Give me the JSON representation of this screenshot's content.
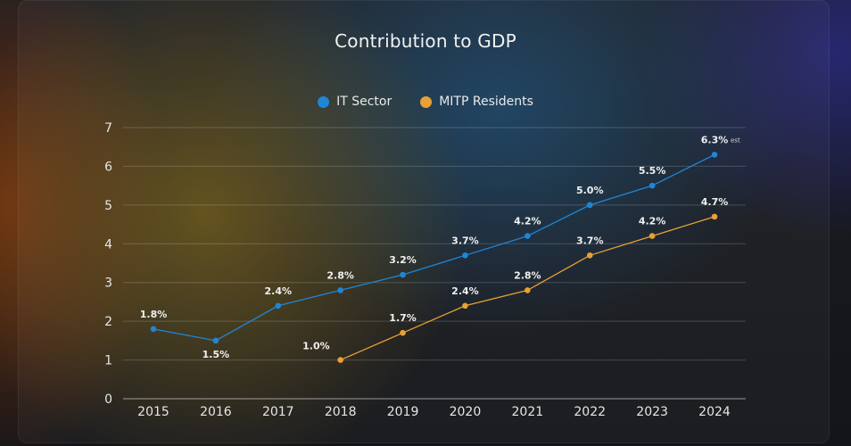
{
  "chart_data": {
    "type": "line",
    "title": "Contribution to GDP",
    "xlabel": "",
    "ylabel": "",
    "categories": [
      "2015",
      "2016",
      "2017",
      "2018",
      "2019",
      "2020",
      "2021",
      "2022",
      "2023",
      "2024"
    ],
    "ylim": [
      0,
      7
    ],
    "yticks": [
      0,
      1,
      2,
      3,
      4,
      5,
      6,
      7
    ],
    "grid": true,
    "legend_position": "top-center",
    "series": [
      {
        "name": "IT Sector",
        "color": "#1f86d6",
        "values": [
          1.8,
          1.5,
          2.4,
          2.8,
          3.2,
          3.7,
          4.2,
          5.0,
          5.5,
          6.3
        ],
        "labels": [
          "1.8%",
          "1.5%",
          "2.4%",
          "2.8%",
          "3.2%",
          "3.7%",
          "4.2%",
          "5.0%",
          "5.5%",
          "6.3%"
        ]
      },
      {
        "name": "MITP Residents",
        "color": "#e8a135",
        "values": [
          null,
          null,
          null,
          1.0,
          1.7,
          2.4,
          2.8,
          3.7,
          4.2,
          4.7
        ],
        "labels": [
          "",
          "",
          "",
          "1.0%",
          "1.7%",
          "2.4%",
          "2.8%",
          "3.7%",
          "4.2%",
          "4.7%"
        ]
      }
    ],
    "annotation": "est"
  }
}
